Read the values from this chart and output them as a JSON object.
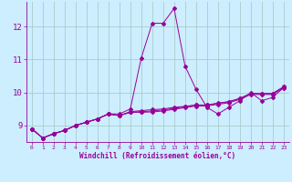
{
  "xlabel": "Windchill (Refroidissement éolien,°C)",
  "bg_color": "#cceeff",
  "line_color": "#990099",
  "grid_color": "#aacccc",
  "xlim": [
    -0.5,
    23.5
  ],
  "ylim": [
    8.5,
    12.75
  ],
  "yticks": [
    9,
    10,
    11,
    12
  ],
  "xticks": [
    0,
    1,
    2,
    3,
    4,
    5,
    6,
    7,
    8,
    9,
    10,
    11,
    12,
    13,
    14,
    15,
    16,
    17,
    18,
    19,
    20,
    21,
    22,
    23
  ],
  "series": [
    [
      8.9,
      8.62,
      8.75,
      8.85,
      9.0,
      9.1,
      9.2,
      9.35,
      9.35,
      9.5,
      11.05,
      12.1,
      12.1,
      12.55,
      10.8,
      10.1,
      9.55,
      9.35,
      9.55,
      9.75,
      10.0,
      9.75,
      9.85,
      10.15
    ],
    [
      8.9,
      8.62,
      8.75,
      8.85,
      9.0,
      9.1,
      9.2,
      9.35,
      9.3,
      9.4,
      9.42,
      9.44,
      9.47,
      9.52,
      9.57,
      9.62,
      9.62,
      9.67,
      9.72,
      9.82,
      9.97,
      9.97,
      9.97,
      10.17
    ],
    [
      8.9,
      8.62,
      8.75,
      8.85,
      9.0,
      9.1,
      9.2,
      9.35,
      9.3,
      9.4,
      9.4,
      9.41,
      9.44,
      9.49,
      9.54,
      9.59,
      9.59,
      9.64,
      9.69,
      9.79,
      9.94,
      9.94,
      9.94,
      10.14
    ],
    [
      8.9,
      8.62,
      8.75,
      8.85,
      9.0,
      9.1,
      9.2,
      9.35,
      9.3,
      9.42,
      9.45,
      9.48,
      9.5,
      9.55,
      9.58,
      9.62,
      9.62,
      9.68,
      9.72,
      9.82,
      9.97,
      9.97,
      9.97,
      10.17
    ]
  ]
}
